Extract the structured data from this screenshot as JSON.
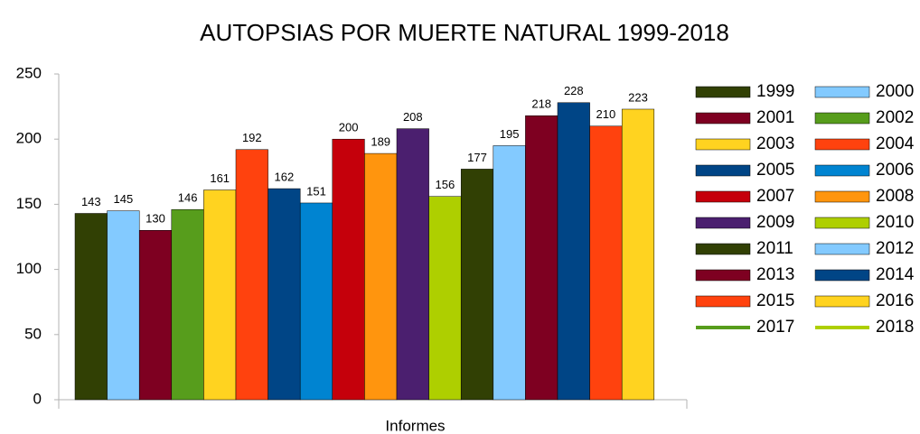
{
  "chart_data": {
    "type": "bar",
    "title": "AUTOPSIAS POR MUERTE NATURAL 1999-2018",
    "categories": [
      "Informes"
    ],
    "series": [
      {
        "name": "1999",
        "color": "#314004",
        "values": [
          143
        ]
      },
      {
        "name": "2000",
        "color": "#83caff",
        "values": [
          145
        ]
      },
      {
        "name": "2001",
        "color": "#7e0021",
        "values": [
          130
        ]
      },
      {
        "name": "2002",
        "color": "#579d1c",
        "values": [
          146
        ]
      },
      {
        "name": "2003",
        "color": "#ffd320",
        "values": [
          161
        ]
      },
      {
        "name": "2004",
        "color": "#ff420e",
        "values": [
          192
        ]
      },
      {
        "name": "2005",
        "color": "#004586",
        "values": [
          162
        ]
      },
      {
        "name": "2006",
        "color": "#0084d1",
        "values": [
          151
        ]
      },
      {
        "name": "2007",
        "color": "#c5000b",
        "values": [
          200
        ]
      },
      {
        "name": "2008",
        "color": "#ff950e",
        "values": [
          189
        ]
      },
      {
        "name": "2009",
        "color": "#4b1f6f",
        "values": [
          208
        ]
      },
      {
        "name": "2010",
        "color": "#aecf00",
        "values": [
          156
        ]
      },
      {
        "name": "2011",
        "color": "#314004",
        "values": [
          177
        ]
      },
      {
        "name": "2012",
        "color": "#83caff",
        "values": [
          195
        ]
      },
      {
        "name": "2013",
        "color": "#7e0021",
        "values": [
          218
        ]
      },
      {
        "name": "2014",
        "color": "#004586",
        "values": [
          228
        ]
      },
      {
        "name": "2015",
        "color": "#ff420e",
        "values": [
          210
        ]
      },
      {
        "name": "2016",
        "color": "#ffd320",
        "values": [
          223
        ]
      },
      {
        "name": "2017",
        "color": "#579d1c",
        "values": [
          null
        ]
      },
      {
        "name": "2018",
        "color": "#aecf00",
        "values": [
          null
        ]
      }
    ],
    "ylim": [
      0,
      250
    ],
    "yticks": [
      0,
      50,
      100,
      150,
      200,
      250
    ],
    "grid": false,
    "legend": "right"
  }
}
